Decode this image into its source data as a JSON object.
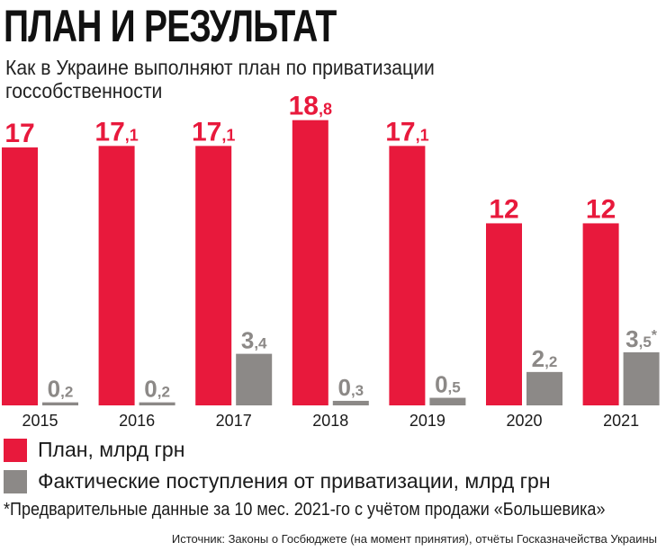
{
  "chart_data": {
    "type": "bar",
    "title": "ПЛАН И РЕЗУЛЬТАТ",
    "subtitle": "Как в Украине выполняют план по приватизации госсобственности",
    "categories": [
      "2015",
      "2016",
      "2017",
      "2018",
      "2019",
      "2020",
      "2021"
    ],
    "series": [
      {
        "name": "План, млрд грн",
        "color": "#e8193c",
        "values": [
          17,
          17.1,
          17.1,
          18.8,
          17.1,
          12,
          12
        ],
        "labels": [
          "17",
          "17,1",
          "17,1",
          "18,8",
          "17,1",
          "12",
          "12"
        ]
      },
      {
        "name": "Фактические поступления от приватизации, млрд грн",
        "color": "#8c8987",
        "values": [
          0.2,
          0.2,
          3.4,
          0.3,
          0.5,
          2.2,
          3.5
        ],
        "labels": [
          "0,2",
          "0,2",
          "3,4",
          "0,3",
          "0,5",
          "2,2",
          "3,5*"
        ]
      }
    ],
    "ylim": [
      0,
      18.8
    ],
    "grid": false,
    "legend": "bottom-left",
    "footnote": "*Предварительные данные за 10 мес. 2021-го с учётом продажи «Большевика»",
    "source": "Источник: Законы о Госбюджете (на момент принятия), отчёты Госказначейства Украины"
  }
}
